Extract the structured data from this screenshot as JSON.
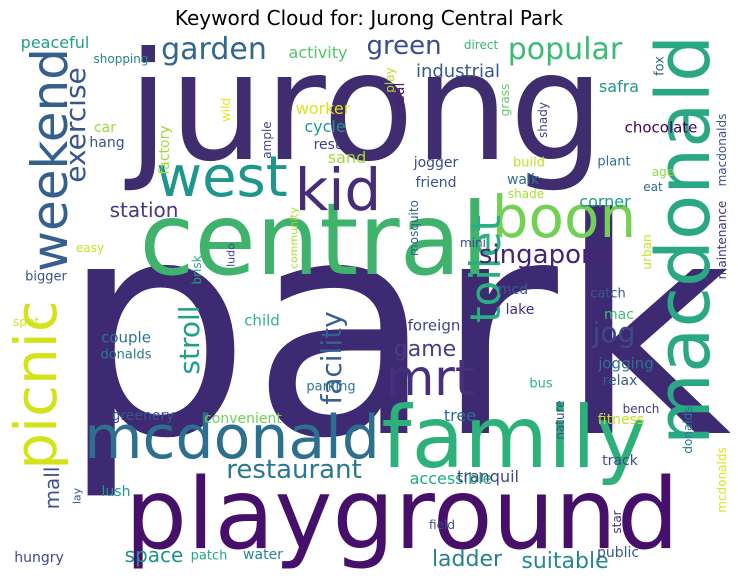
{
  "chart_data": {
    "type": "wordcloud",
    "title": "Keyword Cloud for: Jurong Central Park",
    "words": [
      {
        "text": "park",
        "rank": 1,
        "orientation": "horizontal",
        "color": "#3e2a72"
      },
      {
        "text": "jurong",
        "rank": 2,
        "orientation": "horizontal",
        "color": "#3f2d70"
      },
      {
        "text": "central",
        "rank": 3,
        "orientation": "horizontal",
        "color": "#3fb36b"
      },
      {
        "text": "playground",
        "rank": 4,
        "orientation": "horizontal",
        "color": "#46106a"
      },
      {
        "text": "family",
        "rank": 5,
        "orientation": "horizontal",
        "color": "#2cb17a"
      },
      {
        "text": "macdonald",
        "rank": 6,
        "orientation": "vertical",
        "color": "#2aa884"
      },
      {
        "text": "mcdonald",
        "rank": 7,
        "orientation": "horizontal",
        "color": "#2d6f8e"
      },
      {
        "text": "weekend",
        "rank": 8,
        "orientation": "vertical",
        "color": "#35608d"
      },
      {
        "text": "picnic",
        "rank": 9,
        "orientation": "vertical",
        "color": "#d4e21a"
      },
      {
        "text": "boon",
        "rank": 10,
        "orientation": "horizontal",
        "color": "#74d055"
      },
      {
        "text": "kid",
        "rank": 11,
        "orientation": "horizontal",
        "color": "#472c7a"
      },
      {
        "text": "west",
        "rank": 12,
        "orientation": "horizontal",
        "color": "#1f968b"
      },
      {
        "text": "mrt",
        "rank": 13,
        "orientation": "horizontal",
        "color": "#472f7d"
      },
      {
        "text": "toilet",
        "rank": 14,
        "orientation": "vertical",
        "color": "#2aaf7f"
      },
      {
        "text": "garden",
        "rank": 15,
        "orientation": "horizontal",
        "color": "#31678e"
      },
      {
        "text": "popular",
        "rank": 16,
        "orientation": "horizontal",
        "color": "#3bbb75"
      },
      {
        "text": "exercise",
        "rank": 17,
        "orientation": "vertical",
        "color": "#39568c"
      },
      {
        "text": "green",
        "rank": 18,
        "orientation": "horizontal",
        "color": "#3d4d8a"
      },
      {
        "text": "restaurant",
        "rank": 19,
        "orientation": "horizontal",
        "color": "#2a788e"
      },
      {
        "text": "facility",
        "rank": 20,
        "orientation": "vertical",
        "color": "#34618d"
      },
      {
        "text": "singapore",
        "rank": 21,
        "orientation": "horizontal",
        "color": "#482475"
      },
      {
        "text": "stroll",
        "rank": 22,
        "orientation": "vertical",
        "color": "#1fa088"
      },
      {
        "text": "jog",
        "rank": 23,
        "orientation": "horizontal",
        "color": "#3e4989"
      },
      {
        "text": "game",
        "rank": 24,
        "orientation": "horizontal",
        "color": "#433e85"
      },
      {
        "text": "ladder",
        "rank": 25,
        "orientation": "horizontal",
        "color": "#27808e"
      },
      {
        "text": "suitable",
        "rank": 26,
        "orientation": "horizontal",
        "color": "#23898e"
      },
      {
        "text": "space",
        "rank": 27,
        "orientation": "horizontal",
        "color": "#21908d"
      },
      {
        "text": "station",
        "rank": 28,
        "orientation": "horizontal",
        "color": "#453781"
      },
      {
        "text": "mall",
        "rank": 29,
        "orientation": "vertical",
        "color": "#3b528b"
      },
      {
        "text": "industrial",
        "rank": 30,
        "orientation": "horizontal",
        "color": "#38598c"
      },
      {
        "text": "activity",
        "rank": 31,
        "orientation": "horizontal",
        "color": "#52c569"
      },
      {
        "text": "peaceful",
        "rank": 32,
        "orientation": "horizontal",
        "color": "#1f9e89"
      },
      {
        "text": "worker",
        "rank": 33,
        "orientation": "horizontal",
        "color": "#dfe318"
      },
      {
        "text": "cycle",
        "rank": 34,
        "orientation": "horizontal",
        "color": "#1f9a8a"
      },
      {
        "text": "rest",
        "rank": 35,
        "orientation": "horizontal",
        "color": "#424086"
      },
      {
        "text": "sand",
        "rank": 36,
        "orientation": "horizontal",
        "color": "#a0da39"
      },
      {
        "text": "car",
        "rank": 37,
        "orientation": "horizontal",
        "color": "#9bd93c"
      },
      {
        "text": "hang",
        "rank": 38,
        "orientation": "horizontal",
        "color": "#3b528b"
      },
      {
        "text": "factory",
        "rank": 39,
        "orientation": "vertical",
        "color": "#9fda3a"
      },
      {
        "text": "shopping",
        "rank": 40,
        "orientation": "horizontal",
        "color": "#25848e"
      },
      {
        "text": "wild",
        "rank": 41,
        "orientation": "vertical",
        "color": "#e5e419"
      },
      {
        "text": "ample",
        "rank": 42,
        "orientation": "vertical",
        "color": "#414487"
      },
      {
        "text": "play",
        "rank": 43,
        "orientation": "vertical",
        "color": "#b5de2b"
      },
      {
        "text": "direct",
        "rank": 44,
        "orientation": "horizontal",
        "color": "#35b779"
      },
      {
        "text": "meal",
        "rank": 45,
        "orientation": "vertical",
        "color": "#481f70"
      },
      {
        "text": "grass",
        "rank": 46,
        "orientation": "vertical",
        "color": "#5ec962"
      },
      {
        "text": "shady",
        "rank": 47,
        "orientation": "vertical",
        "color": "#3f4788"
      },
      {
        "text": "fox",
        "rank": 48,
        "orientation": "vertical",
        "color": "#31688e"
      },
      {
        "text": "safra",
        "rank": 49,
        "orientation": "horizontal",
        "color": "#1f958b"
      },
      {
        "text": "chocolate",
        "rank": 50,
        "orientation": "horizontal",
        "color": "#440154"
      },
      {
        "text": "macdonalds",
        "rank": 51,
        "orientation": "vertical",
        "color": "#3b528b"
      },
      {
        "text": "maintenance",
        "rank": 52,
        "orientation": "vertical",
        "color": "#46307e"
      },
      {
        "text": "plant",
        "rank": 53,
        "orientation": "horizontal",
        "color": "#2d708e"
      },
      {
        "text": "age",
        "rank": 54,
        "orientation": "horizontal",
        "color": "#8ed645"
      },
      {
        "text": "eat",
        "rank": 55,
        "orientation": "horizontal",
        "color": "#31688e"
      },
      {
        "text": "jogger",
        "rank": 56,
        "orientation": "horizontal",
        "color": "#3e4a89"
      },
      {
        "text": "build",
        "rank": 57,
        "orientation": "horizontal",
        "color": "#c2df23"
      },
      {
        "text": "shade",
        "rank": 58,
        "orientation": "horizontal",
        "color": "#addc30"
      },
      {
        "text": "friend",
        "rank": 59,
        "orientation": "horizontal",
        "color": "#39558c"
      },
      {
        "text": "walk",
        "rank": 60,
        "orientation": "horizontal",
        "color": "#2d718e"
      },
      {
        "text": "corner",
        "rank": 61,
        "orientation": "horizontal",
        "color": "#1e9c89"
      },
      {
        "text": "mosquito",
        "rank": 62,
        "orientation": "vertical",
        "color": "#33638d"
      },
      {
        "text": "mini",
        "rank": 63,
        "orientation": "horizontal",
        "color": "#404588"
      },
      {
        "text": "urban",
        "rank": 64,
        "orientation": "vertical",
        "color": "#c8e020"
      },
      {
        "text": "community",
        "rank": 65,
        "orientation": "vertical",
        "color": "#addc30"
      },
      {
        "text": "easy",
        "rank": 66,
        "orientation": "horizontal",
        "color": "#cae11f"
      },
      {
        "text": "brisk",
        "rank": 67,
        "orientation": "vertical",
        "color": "#22a785"
      },
      {
        "text": "ludo",
        "rank": 68,
        "orientation": "vertical",
        "color": "#3e4989"
      },
      {
        "text": "bigger",
        "rank": 69,
        "orientation": "horizontal",
        "color": "#3b528b"
      },
      {
        "text": "spot",
        "rank": 70,
        "orientation": "horizontal",
        "color": "#d8e219"
      },
      {
        "text": "child",
        "rank": 71,
        "orientation": "horizontal",
        "color": "#2eb37c"
      },
      {
        "text": "couple",
        "rank": 72,
        "orientation": "horizontal",
        "color": "#2c728e"
      },
      {
        "text": "donalds",
        "rank": 73,
        "orientation": "horizontal",
        "color": "#2a788e"
      },
      {
        "text": "foreign",
        "rank": 74,
        "orientation": "horizontal",
        "color": "#414487"
      },
      {
        "text": "mcd",
        "rank": 75,
        "orientation": "horizontal",
        "color": "#38598c"
      },
      {
        "text": "lake",
        "rank": 76,
        "orientation": "horizontal",
        "color": "#472c7a"
      },
      {
        "text": "catch",
        "rank": 77,
        "orientation": "horizontal",
        "color": "#39568c"
      },
      {
        "text": "mac",
        "rank": 78,
        "orientation": "horizontal",
        "color": "#3fbc73"
      },
      {
        "text": "parking",
        "rank": 79,
        "orientation": "horizontal",
        "color": "#2b758e"
      },
      {
        "text": "jogging",
        "rank": 80,
        "orientation": "horizontal",
        "color": "#2c738e"
      },
      {
        "text": "relax",
        "rank": 81,
        "orientation": "horizontal",
        "color": "#355f8d"
      },
      {
        "text": "bus",
        "rank": 82,
        "orientation": "horizontal",
        "color": "#2fb47c"
      },
      {
        "text": "greenery",
        "rank": 83,
        "orientation": "horizontal",
        "color": "#3b528b"
      },
      {
        "text": "convenient",
        "rank": 84,
        "orientation": "horizontal",
        "color": "#6ece58"
      },
      {
        "text": "tree",
        "rank": 85,
        "orientation": "horizontal",
        "color": "#2e6e8e"
      },
      {
        "text": "nature",
        "rank": 86,
        "orientation": "vertical",
        "color": "#3d4e8a"
      },
      {
        "text": "fitness",
        "rank": 87,
        "orientation": "horizontal",
        "color": "#c0df25"
      },
      {
        "text": "bench",
        "rank": 88,
        "orientation": "horizontal",
        "color": "#443983"
      },
      {
        "text": "donalds",
        "rank": 89,
        "orientation": "vertical",
        "color": "#2a788e"
      },
      {
        "text": "lush",
        "rank": 90,
        "orientation": "horizontal",
        "color": "#1f9a8a"
      },
      {
        "text": "accessible",
        "rank": 91,
        "orientation": "horizontal",
        "color": "#23a983"
      },
      {
        "text": "tranquil",
        "rank": 92,
        "orientation": "horizontal",
        "color": "#3f4788"
      },
      {
        "text": "track",
        "rank": 93,
        "orientation": "horizontal",
        "color": "#3e4a89"
      },
      {
        "text": "mcdonalds",
        "rank": 94,
        "orientation": "vertical",
        "color": "#dde318"
      },
      {
        "text": "lay",
        "rank": 95,
        "orientation": "vertical",
        "color": "#3b528b"
      },
      {
        "text": "field",
        "rank": 96,
        "orientation": "horizontal",
        "color": "#3b528b"
      },
      {
        "text": "star",
        "rank": 97,
        "orientation": "vertical",
        "color": "#472f7d"
      },
      {
        "text": "hungry",
        "rank": 98,
        "orientation": "horizontal",
        "color": "#3e4989"
      },
      {
        "text": "patch",
        "rank": 99,
        "orientation": "horizontal",
        "color": "#22a785"
      },
      {
        "text": "water",
        "rank": 100,
        "orientation": "horizontal",
        "color": "#25848e"
      },
      {
        "text": "public",
        "rank": 101,
        "orientation": "horizontal",
        "color": "#38598c"
      }
    ]
  }
}
